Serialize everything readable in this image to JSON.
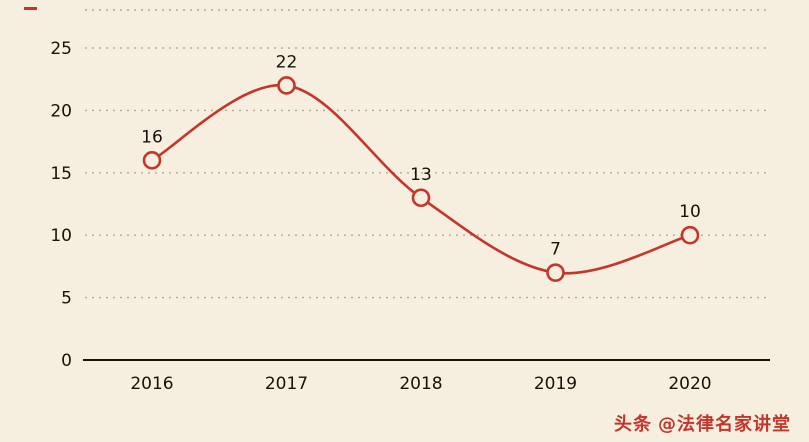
{
  "background_color": "#f6efdf",
  "accent_color": "#c5352c",
  "watermark": {
    "brand": "头条",
    "handle": "@法律名家讲堂"
  },
  "chart_data": {
    "type": "line",
    "categories": [
      "2016",
      "2017",
      "2018",
      "2019",
      "2020"
    ],
    "values": [
      16,
      22,
      13,
      7,
      10
    ],
    "title": "",
    "xlabel": "",
    "ylabel": "",
    "ylim": [
      0,
      25
    ],
    "yticks": [
      0,
      5,
      10,
      15,
      20,
      25
    ],
    "grid": "horizontal-dotted",
    "legend": "none",
    "line_color": "#c5352c",
    "marker_style": "open-circle",
    "smooth": true,
    "data_labels_visible": true
  }
}
